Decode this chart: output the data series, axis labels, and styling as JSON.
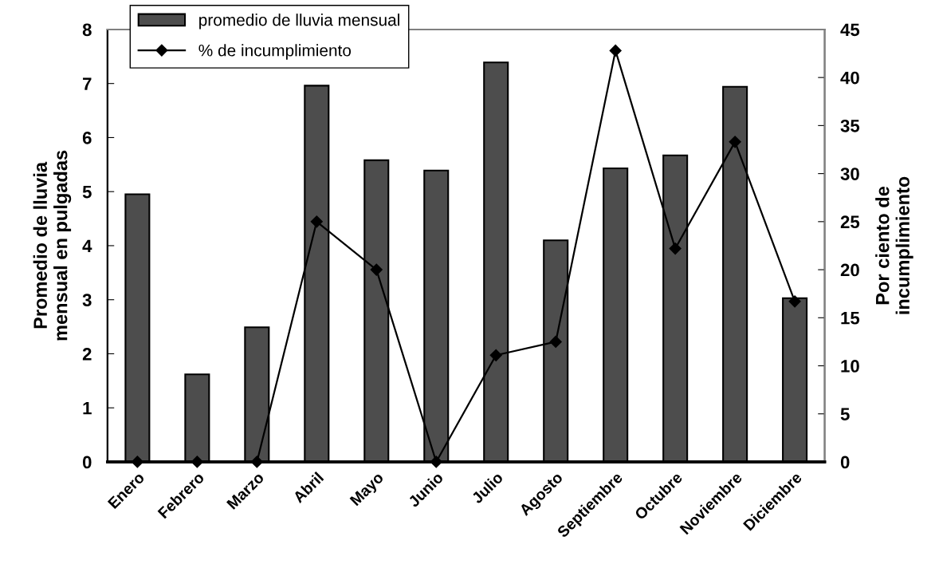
{
  "chart_data": {
    "type": "bar",
    "categories": [
      "Enero",
      "Febrero",
      "Marzo",
      "Abril",
      "Mayo",
      "Junio",
      "Julio",
      "Agosto",
      "Septiembre",
      "Octubre",
      "Noviembre",
      "Diciembre"
    ],
    "series": [
      {
        "name": "promedio de lluvia mensual",
        "color": "#4d4d4d",
        "values": [
          4.95,
          1.62,
          2.49,
          6.96,
          5.58,
          5.39,
          7.39,
          4.1,
          5.43,
          5.67,
          6.94,
          3.03
        ]
      },
      {
        "name": "% de incumplimiento",
        "type": "line",
        "axis": "y2",
        "color": "#000000",
        "values": [
          0,
          0,
          0,
          25,
          20,
          0,
          11.1,
          12.5,
          42.8,
          22.2,
          33.3,
          16.7
        ]
      }
    ],
    "ylabel": "Promedio de lluvia\nmensual en pulgadas",
    "y2label": "Por ciento de\nincumplimiento",
    "ylim": [
      0,
      8
    ],
    "yticks": [
      0,
      1,
      2,
      3,
      4,
      5,
      6,
      7,
      8
    ],
    "y2lim": [
      0,
      45
    ],
    "y2ticks": [
      0,
      5,
      10,
      15,
      20,
      25,
      30,
      35,
      40,
      45
    ],
    "legend": "top left",
    "marker": "diamond",
    "line_style": "solid"
  }
}
